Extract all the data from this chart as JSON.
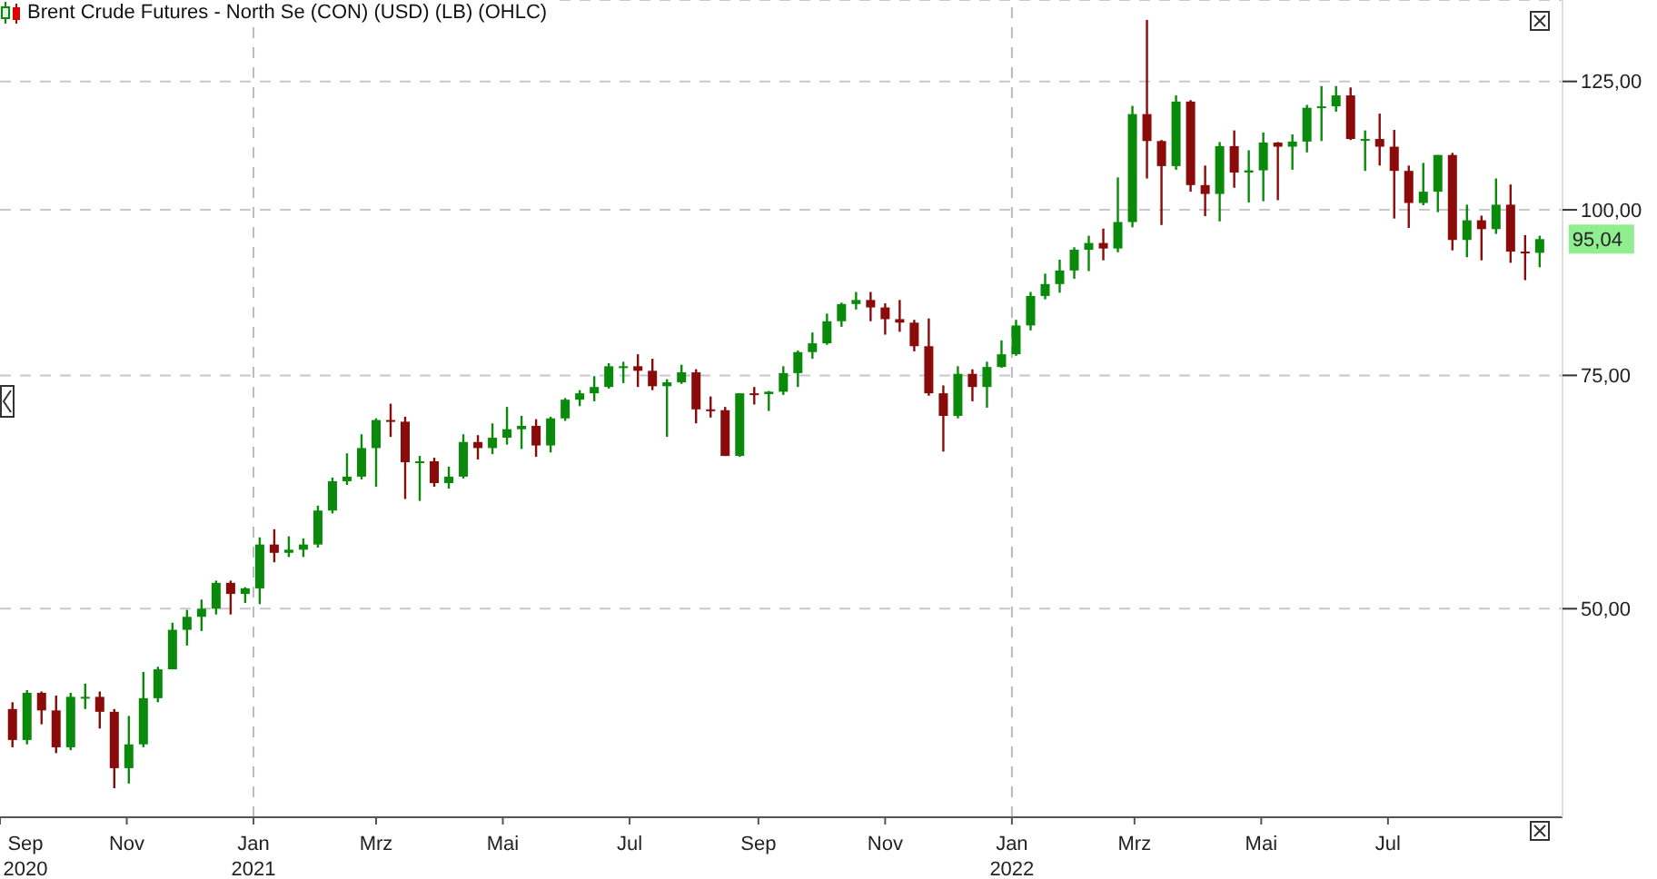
{
  "chart_data": {
    "type": "candlestick",
    "title": "Brent Crude Futures - North Se (CON) (USD) (LB) (OHLC)",
    "x": [
      "2020-09-07",
      "2020-09-14",
      "2020-09-21",
      "2020-09-28",
      "2020-10-05",
      "2020-10-12",
      "2020-10-19",
      "2020-10-26",
      "2020-11-02",
      "2020-11-09",
      "2020-11-16",
      "2020-11-23",
      "2020-11-30",
      "2020-12-07",
      "2020-12-14",
      "2020-12-21",
      "2020-12-28",
      "2021-01-04",
      "2021-01-11",
      "2021-01-18",
      "2021-01-25",
      "2021-02-01",
      "2021-02-08",
      "2021-02-15",
      "2021-02-22",
      "2021-03-01",
      "2021-03-08",
      "2021-03-15",
      "2021-03-22",
      "2021-03-29",
      "2021-04-05",
      "2021-04-12",
      "2021-04-19",
      "2021-04-26",
      "2021-05-03",
      "2021-05-10",
      "2021-05-17",
      "2021-05-24",
      "2021-05-31",
      "2021-06-07",
      "2021-06-14",
      "2021-06-21",
      "2021-06-28",
      "2021-07-05",
      "2021-07-12",
      "2021-07-19",
      "2021-07-26",
      "2021-08-02",
      "2021-08-09",
      "2021-08-16",
      "2021-08-23",
      "2021-08-30",
      "2021-09-06",
      "2021-09-13",
      "2021-09-20",
      "2021-09-27",
      "2021-10-04",
      "2021-10-11",
      "2021-10-18",
      "2021-10-25",
      "2021-11-01",
      "2021-11-08",
      "2021-11-15",
      "2021-11-22",
      "2021-11-29",
      "2021-12-06",
      "2021-12-13",
      "2021-12-20",
      "2021-12-27",
      "2022-01-03",
      "2022-01-10",
      "2022-01-17",
      "2022-01-24",
      "2022-01-31",
      "2022-02-07",
      "2022-02-14",
      "2022-02-21",
      "2022-02-28",
      "2022-03-07",
      "2022-03-14",
      "2022-03-21",
      "2022-03-28",
      "2022-04-04",
      "2022-04-11",
      "2022-04-18",
      "2022-04-25",
      "2022-05-02",
      "2022-05-09",
      "2022-05-16",
      "2022-05-23",
      "2022-05-30",
      "2022-06-06",
      "2022-06-13",
      "2022-06-20",
      "2022-06-27",
      "2022-07-04",
      "2022-07-11",
      "2022-07-18",
      "2022-07-25",
      "2022-08-01",
      "2022-08-08",
      "2022-08-15",
      "2022-08-22",
      "2022-08-29",
      "2022-09-05",
      "2022-09-12"
    ],
    "ohlc": [
      [
        42.0,
        42.5,
        39.3,
        39.8
      ],
      [
        39.8,
        43.4,
        39.5,
        43.2
      ],
      [
        43.2,
        43.3,
        40.9,
        41.9
      ],
      [
        41.9,
        43.0,
        38.9,
        39.3
      ],
      [
        39.3,
        43.2,
        39.1,
        42.9
      ],
      [
        42.9,
        43.9,
        42.0,
        42.9
      ],
      [
        42.9,
        43.3,
        40.6,
        41.8
      ],
      [
        41.8,
        42.0,
        36.6,
        37.9
      ],
      [
        37.9,
        41.5,
        36.9,
        39.5
      ],
      [
        39.5,
        44.8,
        39.3,
        42.8
      ],
      [
        42.8,
        45.2,
        42.5,
        45.0
      ],
      [
        45.0,
        48.8,
        45.0,
        48.2
      ],
      [
        48.2,
        49.9,
        46.9,
        49.3
      ],
      [
        49.3,
        50.8,
        48.1,
        50.0
      ],
      [
        50.0,
        52.5,
        49.5,
        52.3
      ],
      [
        52.3,
        52.5,
        49.5,
        51.3
      ],
      [
        51.3,
        51.9,
        50.5,
        51.8
      ],
      [
        51.8,
        56.6,
        50.4,
        55.9
      ],
      [
        55.9,
        57.4,
        54.2,
        55.1
      ],
      [
        55.1,
        56.7,
        54.7,
        55.4
      ],
      [
        55.4,
        56.5,
        54.7,
        55.9
      ],
      [
        55.9,
        59.8,
        55.6,
        59.3
      ],
      [
        59.3,
        62.8,
        59.0,
        62.4
      ],
      [
        62.4,
        65.5,
        62.0,
        62.9
      ],
      [
        62.9,
        67.7,
        62.6,
        66.1
      ],
      [
        66.1,
        69.6,
        61.8,
        69.4
      ],
      [
        69.4,
        71.4,
        67.4,
        69.2
      ],
      [
        69.2,
        69.8,
        60.5,
        64.5
      ],
      [
        64.5,
        65.2,
        60.3,
        64.6
      ],
      [
        64.6,
        65.0,
        61.8,
        62.2
      ],
      [
        62.2,
        64.0,
        61.6,
        62.9
      ],
      [
        62.9,
        67.7,
        62.7,
        66.8
      ],
      [
        66.8,
        67.6,
        64.8,
        66.1
      ],
      [
        66.1,
        69.0,
        65.4,
        67.3
      ],
      [
        67.3,
        71.0,
        66.5,
        68.3
      ],
      [
        68.3,
        69.9,
        66.0,
        68.7
      ],
      [
        68.7,
        69.5,
        65.1,
        66.4
      ],
      [
        66.4,
        69.8,
        65.6,
        69.6
      ],
      [
        69.6,
        72.1,
        69.3,
        71.9
      ],
      [
        71.9,
        73.1,
        71.1,
        72.7
      ],
      [
        72.7,
        74.9,
        71.7,
        73.5
      ],
      [
        73.5,
        76.6,
        73.3,
        76.2
      ],
      [
        76.2,
        76.8,
        74.0,
        76.2
      ],
      [
        76.2,
        77.8,
        73.5,
        75.6
      ],
      [
        75.6,
        77.2,
        73.1,
        73.6
      ],
      [
        73.6,
        74.5,
        67.4,
        74.1
      ],
      [
        74.1,
        76.4,
        73.9,
        75.4
      ],
      [
        75.4,
        75.8,
        69.0,
        70.7
      ],
      [
        70.7,
        72.3,
        69.7,
        70.6
      ],
      [
        70.6,
        71.0,
        65.2,
        65.2
      ],
      [
        65.2,
        72.7,
        65.1,
        72.7
      ],
      [
        72.7,
        73.5,
        71.3,
        72.6
      ],
      [
        72.6,
        73.0,
        70.5,
        72.9
      ],
      [
        72.9,
        76.2,
        72.5,
        75.3
      ],
      [
        75.3,
        78.3,
        73.5,
        78.1
      ],
      [
        78.1,
        80.8,
        77.2,
        79.3
      ],
      [
        79.3,
        83.5,
        79.1,
        82.4
      ],
      [
        82.4,
        85.1,
        81.6,
        84.9
      ],
      [
        84.9,
        86.7,
        84.1,
        85.5
      ],
      [
        85.5,
        86.7,
        82.4,
        84.4
      ],
      [
        84.4,
        85.0,
        80.5,
        82.7
      ],
      [
        82.7,
        85.5,
        80.9,
        82.2
      ],
      [
        82.2,
        82.6,
        78.2,
        78.9
      ],
      [
        78.9,
        82.8,
        72.4,
        72.7
      ],
      [
        72.7,
        73.7,
        65.7,
        69.9
      ],
      [
        69.9,
        76.2,
        69.6,
        75.2
      ],
      [
        75.2,
        75.8,
        71.7,
        73.5
      ],
      [
        73.5,
        76.8,
        70.9,
        76.1
      ],
      [
        76.1,
        79.7,
        76.0,
        77.8
      ],
      [
        77.8,
        82.6,
        77.6,
        81.8
      ],
      [
        81.8,
        86.7,
        81.1,
        86.1
      ],
      [
        86.1,
        89.5,
        85.6,
        87.9
      ],
      [
        87.9,
        91.7,
        86.6,
        90.0
      ],
      [
        90.0,
        93.7,
        88.7,
        93.3
      ],
      [
        93.3,
        95.6,
        89.9,
        94.4
      ],
      [
        94.4,
        96.8,
        91.6,
        93.5
      ],
      [
        93.5,
        105.8,
        92.9,
        97.9
      ],
      [
        97.9,
        119.8,
        97.0,
        118.1
      ],
      [
        118.1,
        139.1,
        105.6,
        112.7
      ],
      [
        112.7,
        112.9,
        97.4,
        107.9
      ],
      [
        107.9,
        122.0,
        107.2,
        120.7
      ],
      [
        120.7,
        121.0,
        103.2,
        104.4
      ],
      [
        104.4,
        108.0,
        98.9,
        102.8
      ],
      [
        102.8,
        112.5,
        98.0,
        111.7
      ],
      [
        111.7,
        114.8,
        103.9,
        106.7
      ],
      [
        106.7,
        110.9,
        101.3,
        107.1
      ],
      [
        107.1,
        114.4,
        101.5,
        112.4
      ],
      [
        112.4,
        112.5,
        101.7,
        111.6
      ],
      [
        111.6,
        114.0,
        107.2,
        112.6
      ],
      [
        112.6,
        120.0,
        110.5,
        119.4
      ],
      [
        119.4,
        124.0,
        112.7,
        119.7
      ],
      [
        119.7,
        124.0,
        118.6,
        122.0
      ],
      [
        122.0,
        123.7,
        112.9,
        113.1
      ],
      [
        113.1,
        114.8,
        107.0,
        113.1
      ],
      [
        113.1,
        118.2,
        108.0,
        111.6
      ],
      [
        111.6,
        114.9,
        98.5,
        107.0
      ],
      [
        107.0,
        108.0,
        96.9,
        101.2
      ],
      [
        101.2,
        108.5,
        100.8,
        103.2
      ],
      [
        103.2,
        110.0,
        99.6,
        110.0
      ],
      [
        110.0,
        110.4,
        93.2,
        94.9
      ],
      [
        94.9,
        100.9,
        92.1,
        98.2
      ],
      [
        98.2,
        99.0,
        91.6,
        96.7
      ],
      [
        96.7,
        105.6,
        95.9,
        100.9
      ],
      [
        100.9,
        104.5,
        91.2,
        93.0
      ],
      [
        93.0,
        95.7,
        88.5,
        92.8
      ],
      [
        92.8,
        95.6,
        90.5,
        95.04
      ]
    ],
    "colors": [
      "#8b0a0a",
      "#0a8a0a",
      "#8b0a0a",
      "#8b0a0a",
      "#0a8a0a",
      "#0a8a0a",
      "#8b0a0a",
      "#8b0a0a",
      "#0a8a0a",
      "#0a8a0a",
      "#0a8a0a",
      "#0a8a0a",
      "#0a8a0a",
      "#0a8a0a",
      "#0a8a0a",
      "#8b0a0a",
      "#0a8a0a",
      "#0a8a0a",
      "#8b0a0a",
      "#0a8a0a",
      "#0a8a0a",
      "#0a8a0a",
      "#0a8a0a",
      "#0a8a0a",
      "#0a8a0a",
      "#0a8a0a",
      "#8b0a0a",
      "#8b0a0a",
      "#0a8a0a",
      "#8b0a0a",
      "#0a8a0a",
      "#0a8a0a",
      "#8b0a0a",
      "#0a8a0a",
      "#0a8a0a",
      "#0a8a0a",
      "#8b0a0a",
      "#0a8a0a",
      "#0a8a0a",
      "#0a8a0a",
      "#0a8a0a",
      "#0a8a0a",
      "#0a8a0a",
      "#8b0a0a",
      "#8b0a0a",
      "#0a8a0a",
      "#0a8a0a",
      "#8b0a0a",
      "#8b0a0a",
      "#8b0a0a",
      "#0a8a0a",
      "#8b0a0a",
      "#0a8a0a",
      "#0a8a0a",
      "#0a8a0a",
      "#0a8a0a",
      "#0a8a0a",
      "#0a8a0a",
      "#0a8a0a",
      "#8b0a0a",
      "#8b0a0a",
      "#8b0a0a",
      "#8b0a0a",
      "#8b0a0a",
      "#8b0a0a",
      "#0a8a0a",
      "#8b0a0a",
      "#0a8a0a",
      "#0a8a0a",
      "#0a8a0a",
      "#0a8a0a",
      "#0a8a0a",
      "#0a8a0a",
      "#0a8a0a",
      "#0a8a0a",
      "#8b0a0a",
      "#0a8a0a",
      "#0a8a0a",
      "#8b0a0a",
      "#8b0a0a",
      "#0a8a0a",
      "#8b0a0a",
      "#8b0a0a",
      "#0a8a0a",
      "#8b0a0a",
      "#0a8a0a",
      "#0a8a0a",
      "#8b0a0a",
      "#0a8a0a",
      "#0a8a0a",
      "#0a8a0a",
      "#0a8a0a",
      "#8b0a0a",
      "#0a8a0a",
      "#8b0a0a",
      "#8b0a0a",
      "#8b0a0a",
      "#0a8a0a",
      "#0a8a0a",
      "#8b0a0a",
      "#0a8a0a",
      "#8b0a0a",
      "#0a8a0a",
      "#8b0a0a",
      "#8b0a0a",
      "#0a8a0a"
    ],
    "log": "y",
    "ylim": [
      34.8,
      144
    ],
    "yticks": [
      {
        "value": 50,
        "label": "50,00"
      },
      {
        "value": 75,
        "label": "75,00"
      },
      {
        "value": 100,
        "label": "100,00"
      },
      {
        "value": 125,
        "label": "125,00"
      }
    ],
    "xlim": [
      "2020-09-01",
      "2022-09-23"
    ],
    "xticks": [
      {
        "value": "2020-09-01",
        "label": "Sep 2020"
      },
      {
        "value": "2020-11-01",
        "label": "Nov"
      },
      {
        "value": "2021-01-01",
        "label": "Jan 2021"
      },
      {
        "value": "2021-03-01",
        "label": "Mrz"
      },
      {
        "value": "2021-05-01",
        "label": "Mai"
      },
      {
        "value": "2021-07-01",
        "label": "Jul"
      },
      {
        "value": "2021-09-01",
        "label": "Sep"
      },
      {
        "value": "2021-11-01",
        "label": "Nov"
      },
      {
        "value": "2022-01-01",
        "label": "Jan 2022"
      },
      {
        "value": "2022-03-01",
        "label": "Mrz"
      },
      {
        "value": "2022-05-01",
        "label": "Mai"
      },
      {
        "value": "2022-07-01",
        "label": "Jul"
      }
    ],
    "grid": "y",
    "ref_lines": [
      {
        "axis": "x",
        "value": "2021-01-01",
        "color": "#bbbbbb",
        "line_style": "dashed"
      },
      {
        "axis": "x",
        "value": "2022-01-01",
        "color": "#bbbbbb",
        "line_style": "dashed"
      }
    ],
    "annotations": [
      {
        "text": "95,04",
        "x": "2022-09-12",
        "y": 95.04
      }
    ]
  }
}
